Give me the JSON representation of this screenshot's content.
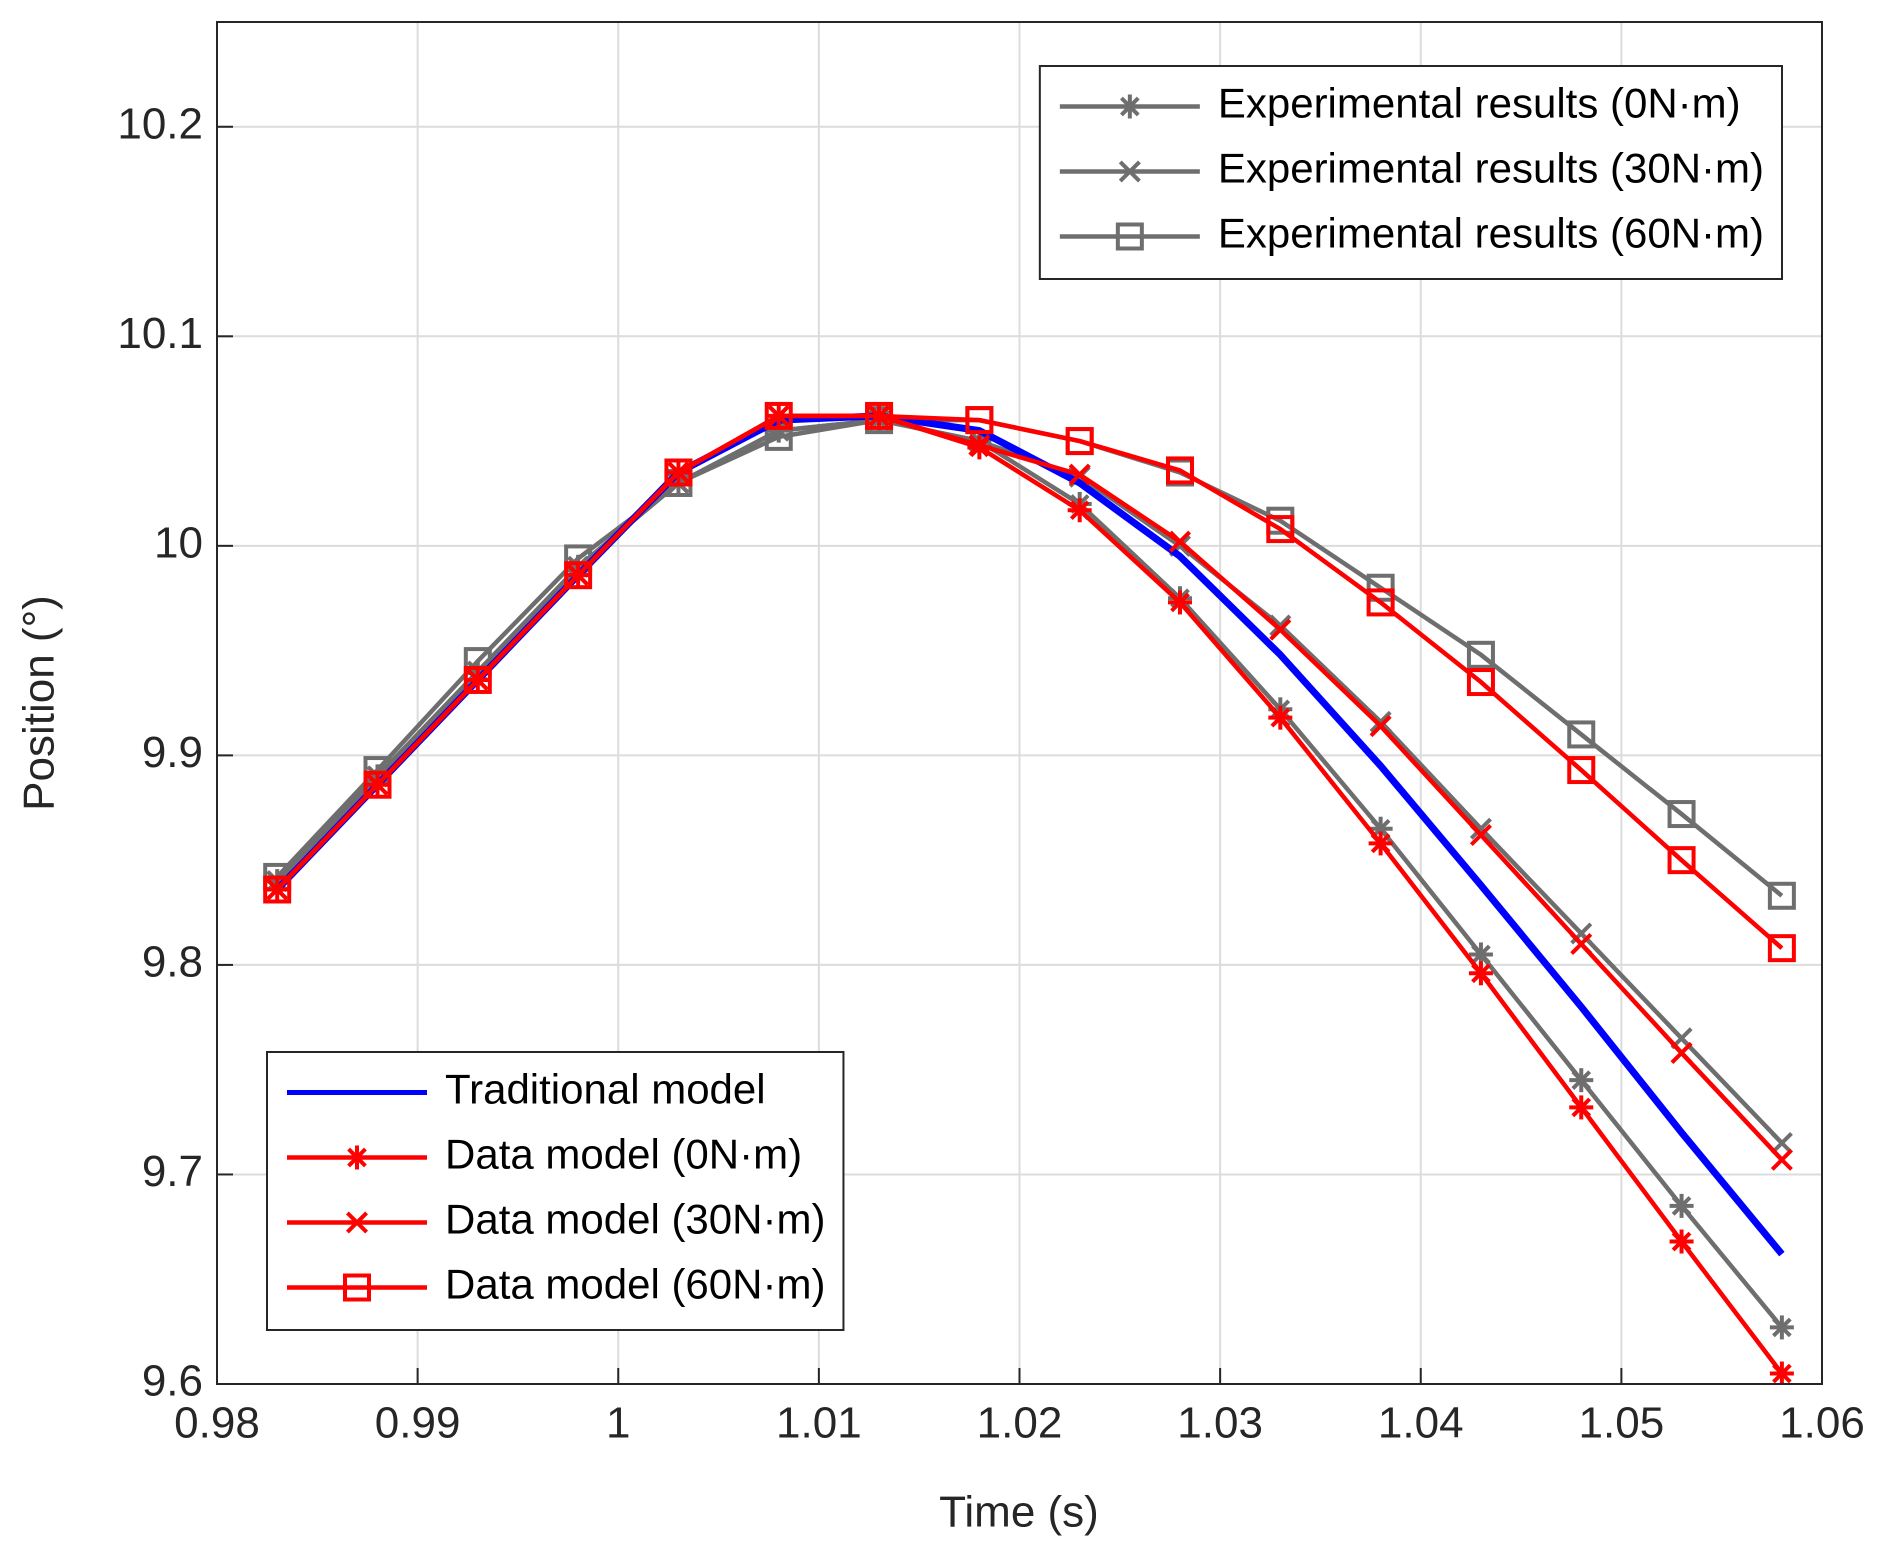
{
  "chart_data": {
    "type": "line",
    "xlabel": "Time (s)",
    "ylabel": "Position (°)",
    "x": [
      0.983,
      0.988,
      0.993,
      0.998,
      1.003,
      1.008,
      1.013,
      1.018,
      1.023,
      1.028,
      1.033,
      1.038,
      1.043,
      1.048,
      1.053,
      1.058
    ],
    "series": [
      {
        "name": "Experimental results (0N·m)",
        "color": "#6e6e6e",
        "marker": "asterisk",
        "legend": "upper right",
        "values": [
          9.84,
          9.89,
          9.94,
          9.99,
          10.03,
          10.055,
          10.06,
          10.05,
          10.02,
          9.975,
          9.922,
          9.865,
          9.805,
          9.745,
          9.685,
          9.627
        ]
      },
      {
        "name": "Experimental results (30N·m)",
        "color": "#6e6e6e",
        "marker": "x",
        "legend": "upper right",
        "values": [
          9.84,
          9.89,
          9.94,
          9.99,
          10.03,
          10.055,
          10.06,
          10.05,
          10.033,
          10.0,
          9.962,
          9.916,
          9.865,
          9.815,
          9.765,
          9.715
        ]
      },
      {
        "name": "Experimental results (60N·m)",
        "color": "#6e6e6e",
        "marker": "square",
        "legend": "upper right",
        "values": [
          9.842,
          9.893,
          9.945,
          9.994,
          10.03,
          10.052,
          10.06,
          10.06,
          10.05,
          10.035,
          10.012,
          9.98,
          9.948,
          9.91,
          9.872,
          9.833
        ]
      },
      {
        "name": "Traditional model",
        "color": "#0000ff",
        "marker": "none",
        "legend": "lower left",
        "values": [
          9.836,
          9.886,
          9.936,
          9.986,
          10.035,
          10.06,
          10.062,
          10.055,
          10.03,
          9.995,
          9.948,
          9.895,
          9.838,
          9.78,
          9.72,
          9.662
        ]
      },
      {
        "name": "Data model (0N·m)",
        "color": "#ff0000",
        "marker": "asterisk",
        "legend": "lower left",
        "values": [
          9.836,
          9.886,
          9.936,
          9.986,
          10.035,
          10.062,
          10.062,
          10.047,
          10.017,
          9.973,
          9.918,
          9.858,
          9.796,
          9.732,
          9.668,
          9.605
        ]
      },
      {
        "name": "Data model (30N·m)",
        "color": "#ff0000",
        "marker": "x",
        "legend": "lower left",
        "values": [
          9.836,
          9.886,
          9.936,
          9.986,
          10.035,
          10.062,
          10.062,
          10.048,
          10.034,
          10.002,
          9.96,
          9.914,
          9.862,
          9.81,
          9.758,
          9.707
        ]
      },
      {
        "name": "Data model (60N·m)",
        "color": "#ff0000",
        "marker": "square",
        "legend": "lower left",
        "values": [
          9.836,
          9.886,
          9.936,
          9.986,
          10.035,
          10.062,
          10.062,
          10.06,
          10.05,
          10.036,
          10.008,
          9.973,
          9.935,
          9.893,
          9.85,
          9.808
        ]
      }
    ],
    "xlim": [
      0.98,
      1.06
    ],
    "xticks": [
      0.98,
      0.99,
      1,
      1.01,
      1.02,
      1.03,
      1.04,
      1.05,
      1.06
    ],
    "ylim": [
      9.6,
      10.25
    ],
    "yticks": [
      9.6,
      9.7,
      9.8,
      9.9,
      10,
      10.1,
      10.2
    ],
    "grid": true
  }
}
